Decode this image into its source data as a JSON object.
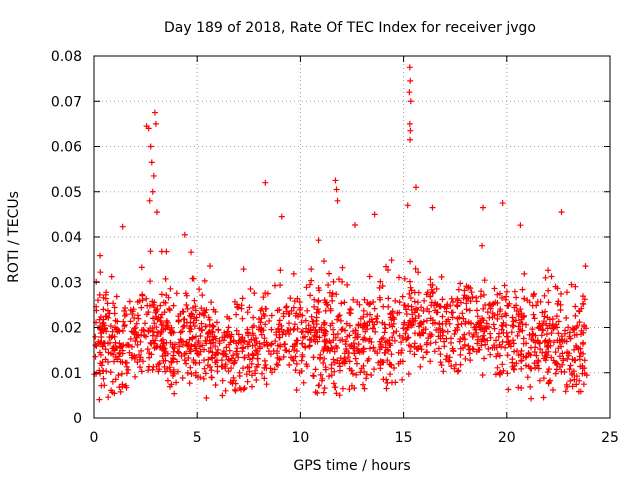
{
  "chart_data": {
    "type": "scatter",
    "title": "Day 189 of 2018, Rate Of TEC Index for receiver jvgo",
    "xlabel": "GPS time / hours",
    "ylabel": "ROTI / TECUs",
    "xlim": [
      0,
      25
    ],
    "ylim": [
      0,
      0.08
    ],
    "x_ticks": [
      0,
      5,
      10,
      15,
      20,
      25
    ],
    "x_tick_labels": [
      "0",
      "5",
      "10",
      "15",
      "20",
      "25"
    ],
    "y_ticks": [
      0,
      0.01,
      0.02,
      0.03,
      0.04,
      0.05,
      0.06,
      0.07,
      0.08
    ],
    "y_tick_labels": [
      "0",
      "0.01",
      "0.02",
      "0.03",
      "0.04",
      "0.05",
      "0.06",
      "0.07",
      "0.08"
    ],
    "grid": true,
    "marker": "+",
    "marker_color": "#ff0000",
    "x_end": 23.9,
    "baseline": [
      [
        0.0,
        0.017
      ],
      [
        1.0,
        0.015
      ],
      [
        2.0,
        0.016
      ],
      [
        3.0,
        0.019
      ],
      [
        4.0,
        0.017
      ],
      [
        5.0,
        0.018
      ],
      [
        6.0,
        0.015
      ],
      [
        7.0,
        0.014
      ],
      [
        8.0,
        0.016
      ],
      [
        9.0,
        0.02
      ],
      [
        10.0,
        0.019
      ],
      [
        11.0,
        0.017
      ],
      [
        12.0,
        0.016
      ],
      [
        13.0,
        0.017
      ],
      [
        14.0,
        0.018
      ],
      [
        15.0,
        0.02
      ],
      [
        16.0,
        0.021
      ],
      [
        17.0,
        0.02
      ],
      [
        18.0,
        0.02
      ],
      [
        19.0,
        0.019
      ],
      [
        20.0,
        0.018
      ],
      [
        21.0,
        0.017
      ],
      [
        22.0,
        0.016
      ],
      [
        23.0,
        0.015
      ],
      [
        24.0,
        0.015
      ]
    ],
    "spikes": [
      {
        "x": 2.55,
        "y": 0.0645
      },
      {
        "x": 2.65,
        "y": 0.064
      },
      {
        "x": 2.75,
        "y": 0.06
      },
      {
        "x": 2.8,
        "y": 0.0565
      },
      {
        "x": 2.9,
        "y": 0.0535
      },
      {
        "x": 2.95,
        "y": 0.0675
      },
      {
        "x": 3.0,
        "y": 0.065
      },
      {
        "x": 2.85,
        "y": 0.05
      },
      {
        "x": 3.05,
        "y": 0.0455
      },
      {
        "x": 2.7,
        "y": 0.048
      },
      {
        "x": 15.3,
        "y": 0.0775
      },
      {
        "x": 15.32,
        "y": 0.0745
      },
      {
        "x": 15.28,
        "y": 0.072
      },
      {
        "x": 15.35,
        "y": 0.07
      },
      {
        "x": 15.3,
        "y": 0.065
      },
      {
        "x": 15.33,
        "y": 0.0635
      },
      {
        "x": 15.31,
        "y": 0.0615
      },
      {
        "x": 15.6,
        "y": 0.051
      },
      {
        "x": 15.2,
        "y": 0.047
      },
      {
        "x": 8.3,
        "y": 0.052
      },
      {
        "x": 11.7,
        "y": 0.0525
      },
      {
        "x": 11.75,
        "y": 0.0505
      },
      {
        "x": 11.8,
        "y": 0.048
      },
      {
        "x": 19.8,
        "y": 0.0475
      },
      {
        "x": 18.85,
        "y": 0.0465
      },
      {
        "x": 22.65,
        "y": 0.0455
      },
      {
        "x": 4.4,
        "y": 0.0405
      },
      {
        "x": 9.1,
        "y": 0.0445
      },
      {
        "x": 16.4,
        "y": 0.0465
      },
      {
        "x": 13.6,
        "y": 0.045
      }
    ],
    "n_points": 5200
  }
}
